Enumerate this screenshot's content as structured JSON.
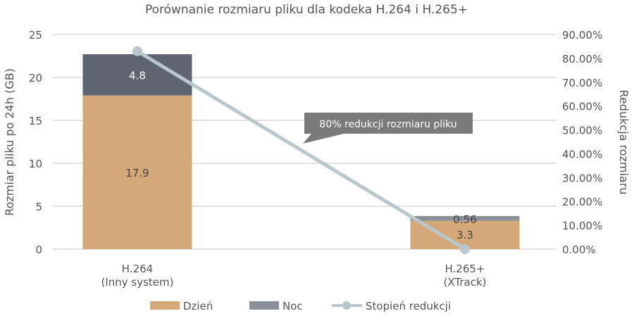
{
  "chart_data": {
    "type": "bar",
    "title": "Porównanie rozmiaru pliku dla kodeka H.264 i H.265+",
    "categories": [
      [
        "H.264",
        "(Inny system)"
      ],
      [
        "H.265+",
        "(XTrack)"
      ]
    ],
    "ylabel": "Rozmiar pliku po 24h (GB)",
    "y2label": "Redukcja rozmiaru",
    "ylim": [
      0,
      25
    ],
    "yticks": [
      "0",
      "5",
      "10",
      "15",
      "20",
      "25"
    ],
    "y2lim": [
      0,
      90
    ],
    "y2ticks": [
      "0.00%",
      "10.00%",
      "20.00%",
      "30.00%",
      "40.00%",
      "50.00%",
      "60.00%",
      "70.00%",
      "80.00%",
      "90.00%"
    ],
    "grid": true,
    "series": [
      {
        "name": "Dzień",
        "kind": "bar",
        "values": [
          17.9,
          3.3
        ],
        "labels": [
          "17.9",
          "3.3"
        ],
        "color": "#d4a878"
      },
      {
        "name": "Noc",
        "kind": "bar",
        "values": [
          4.8,
          0.56
        ],
        "labels": [
          "4.8",
          "0.56"
        ],
        "color": "#8a8f9a",
        "point_colors": [
          "#5f6570",
          "#8a8f9a"
        ]
      },
      {
        "name": "Stopień redukcji",
        "kind": "line",
        "axis": "right",
        "values": [
          83,
          0
        ],
        "color": "#b7c7cc"
      }
    ],
    "annotation": "80% redukcji rozmiaru pliku",
    "legend": "bottom"
  }
}
